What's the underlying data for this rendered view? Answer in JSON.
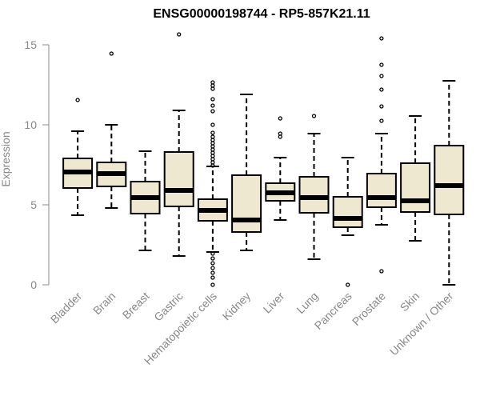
{
  "chart_data": {
    "type": "boxplot",
    "title": "ENSG00000198744 - RP5-857K21.11",
    "ylabel": "Expression",
    "xlabel": "",
    "ylim": [
      0,
      15.8
    ],
    "yticks": [
      "0",
      "5",
      "10",
      "15"
    ],
    "box_fill": "#efe8d0",
    "categories": [
      "Bladder",
      "Brain",
      "Breast",
      "Gastric",
      "Hematopoietic cells",
      "Kidney",
      "Liver",
      "Lung",
      "Pancreas",
      "Prostate",
      "Skin",
      "Unknown / Other"
    ],
    "boxes": [
      {
        "label": "Bladder",
        "whisker_low": 4.35,
        "q1": 6.05,
        "median": 7.05,
        "q3": 7.9,
        "whisker_high": 9.6,
        "outliers": [
          11.55
        ]
      },
      {
        "label": "Brain",
        "whisker_low": 4.8,
        "q1": 6.15,
        "median": 6.95,
        "q3": 7.65,
        "whisker_high": 10.0,
        "outliers": [
          14.45
        ]
      },
      {
        "label": "Breast",
        "whisker_low": 2.15,
        "q1": 4.45,
        "median": 5.45,
        "q3": 6.45,
        "whisker_high": 8.35,
        "outliers": []
      },
      {
        "label": "Gastric",
        "whisker_low": 1.8,
        "q1": 4.9,
        "median": 5.9,
        "q3": 8.3,
        "whisker_high": 10.9,
        "outliers": [
          15.65
        ]
      },
      {
        "label": "Hematopoietic cells",
        "whisker_low": 2.05,
        "q1": 4.0,
        "median": 4.65,
        "q3": 5.35,
        "whisker_high": 7.4,
        "outliers": [
          0.0,
          0.45,
          0.75,
          1.05,
          1.35,
          1.65,
          1.95,
          7.45,
          7.65,
          7.85,
          8.05,
          8.25,
          8.45,
          8.65,
          8.85,
          9.05,
          9.25,
          9.5,
          10.0,
          10.85,
          11.2,
          11.6,
          12.25,
          12.45,
          12.65
        ]
      },
      {
        "label": "Kidney",
        "whisker_low": 2.15,
        "q1": 3.3,
        "median": 4.05,
        "q3": 6.85,
        "whisker_high": 11.9,
        "outliers": []
      },
      {
        "label": "Liver",
        "whisker_low": 4.05,
        "q1": 5.25,
        "median": 5.75,
        "q3": 6.35,
        "whisker_high": 7.95,
        "outliers": [
          9.25,
          9.45,
          10.4
        ]
      },
      {
        "label": "Lung",
        "whisker_low": 1.6,
        "q1": 4.5,
        "median": 5.45,
        "q3": 6.75,
        "whisker_high": 9.45,
        "outliers": [
          10.55
        ]
      },
      {
        "label": "Pancreas",
        "whisker_low": 3.1,
        "q1": 3.6,
        "median": 4.15,
        "q3": 5.5,
        "whisker_high": 7.95,
        "outliers": [
          0.0
        ]
      },
      {
        "label": "Prostate",
        "whisker_low": 3.75,
        "q1": 4.85,
        "median": 5.45,
        "q3": 6.95,
        "whisker_high": 9.45,
        "outliers": [
          0.85,
          10.25,
          11.15,
          12.2,
          13.05,
          13.75,
          15.4
        ]
      },
      {
        "label": "Skin",
        "whisker_low": 2.75,
        "q1": 4.55,
        "median": 5.25,
        "q3": 7.6,
        "whisker_high": 10.55,
        "outliers": []
      },
      {
        "label": "Unknown / Other",
        "whisker_low": 0.0,
        "q1": 4.4,
        "median": 6.2,
        "q3": 8.7,
        "whisker_high": 12.75,
        "outliers": []
      }
    ],
    "grid": false,
    "legend": "none"
  }
}
